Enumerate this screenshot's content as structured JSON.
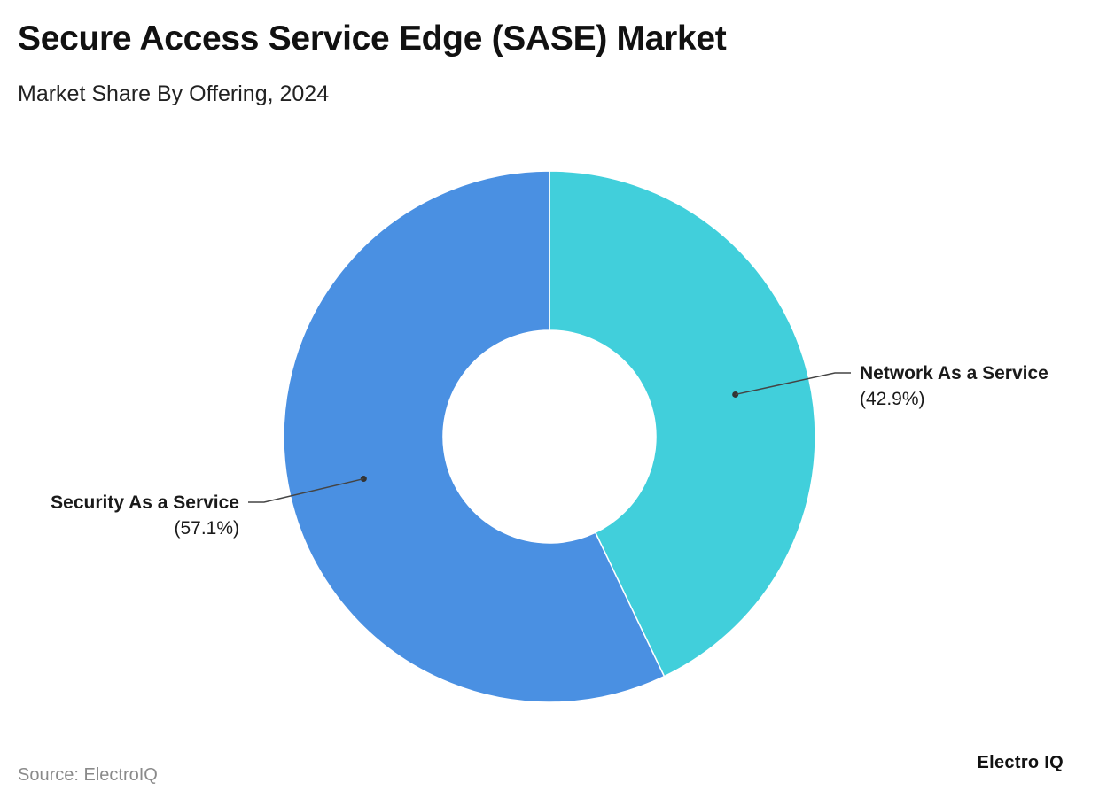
{
  "header": {
    "title": "Secure Access Service Edge (SASE) Market",
    "subtitle": "Market Share By Offering, 2024"
  },
  "footer": {
    "source": "Source: ElectroIQ",
    "brand": "Electro IQ"
  },
  "chart_data": {
    "type": "pie",
    "style": "donut",
    "title": "Secure Access Service Edge (SASE) Market",
    "subtitle": "Market Share By Offering, 2024",
    "start_angle_deg": 0,
    "direction": "clockwise",
    "slices": [
      {
        "label": "Network As a Service",
        "value": 42.9,
        "value_label": "(42.9%)",
        "color": "#41cfdb",
        "label_side": "right"
      },
      {
        "label": "Security As a Service",
        "value": 57.1,
        "value_label": "(57.1%)",
        "color": "#4a90e2",
        "label_side": "left"
      }
    ]
  }
}
